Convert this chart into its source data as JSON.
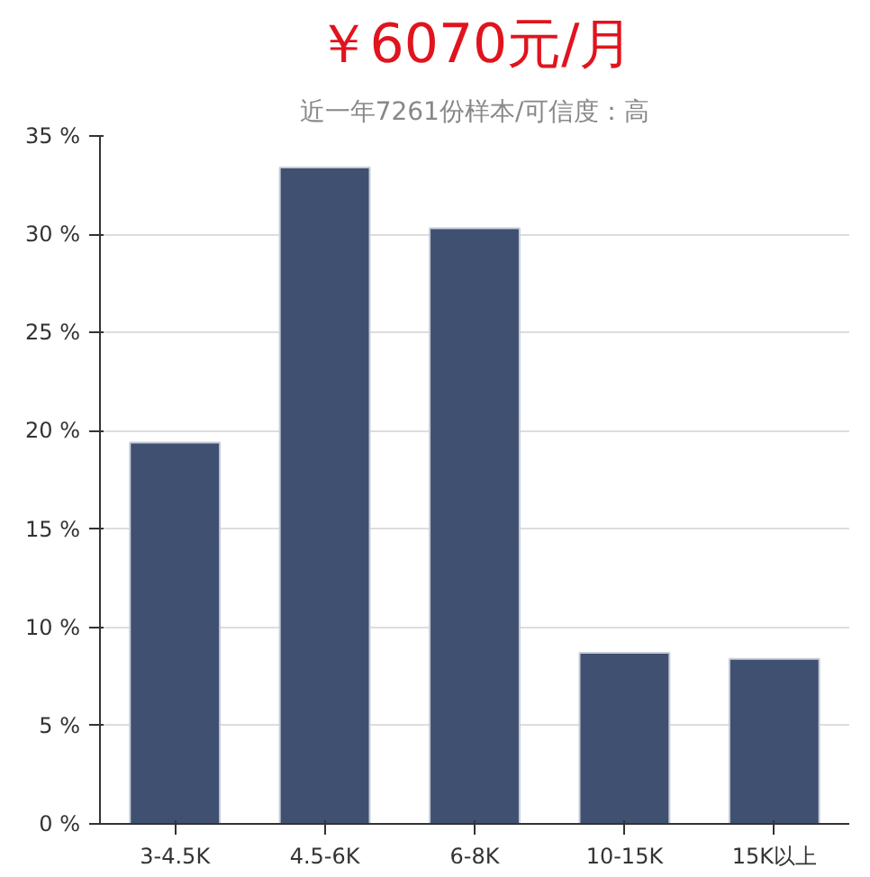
{
  "chart_data": {
    "type": "bar",
    "title": "￥6070元/月",
    "subtitle": "近一年7261份样本/可信度：高",
    "categories": [
      "3-4.5K",
      "4.5-6K",
      "6-8K",
      "10-15K",
      "15K以上"
    ],
    "values": [
      19.4,
      33.4,
      30.3,
      8.7,
      8.4
    ],
    "color": "#3f5070",
    "ylim": [
      0,
      35
    ],
    "yticks": [
      {
        "value": 0,
        "label": "0 %"
      },
      {
        "value": 5,
        "label": "5 %"
      },
      {
        "value": 10,
        "label": "10 %"
      },
      {
        "value": 15,
        "label": "15 %"
      },
      {
        "value": 20,
        "label": "20 %"
      },
      {
        "value": 25,
        "label": "25 %"
      },
      {
        "value": 30,
        "label": "30 %"
      },
      {
        "value": 35,
        "label": "35 %"
      }
    ],
    "grid": "y"
  }
}
